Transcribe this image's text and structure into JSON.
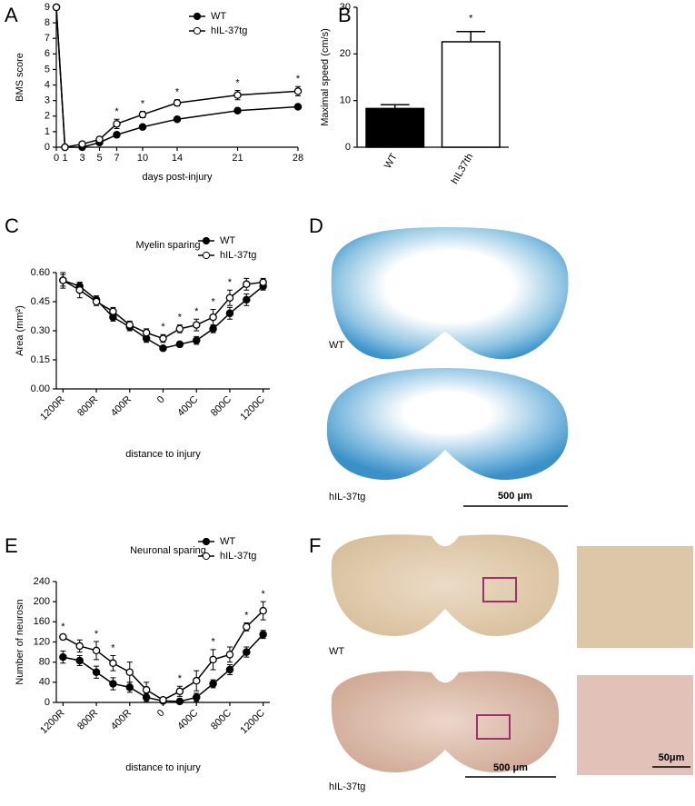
{
  "chart_data": [
    {
      "type": "line",
      "panel": "A",
      "xlabel": "days post-injury",
      "ylabel": "BMS score",
      "legend": "upper right",
      "x": [
        0,
        1,
        3,
        5,
        7,
        10,
        14,
        21,
        28
      ],
      "xlim": [
        0,
        28
      ],
      "xticks": [
        0,
        1,
        3,
        5,
        7,
        10,
        14,
        21,
        28
      ],
      "ylim": [
        0,
        9
      ],
      "yticks": [
        0,
        1,
        2,
        3,
        4,
        5,
        6,
        7,
        8,
        9
      ],
      "series": [
        {
          "name": "WT",
          "color": "#000000",
          "marker_fill": "#000000",
          "values": [
            9,
            0,
            0,
            0.3,
            0.8,
            1.3,
            1.8,
            2.35,
            2.6
          ],
          "errors": [
            0,
            0,
            0.05,
            0.08,
            0.1,
            0.1,
            0.1,
            0.1,
            0.1
          ]
        },
        {
          "name": "hIL-37tg",
          "color": "#000000",
          "marker_fill": "#ffffff",
          "values": [
            9,
            0,
            0.2,
            0.5,
            1.5,
            2.1,
            2.85,
            3.35,
            3.6
          ],
          "errors": [
            0,
            0,
            0.1,
            0.15,
            0.3,
            0.2,
            0.2,
            0.3,
            0.3
          ]
        }
      ],
      "significance": [
        null,
        null,
        null,
        null,
        "*",
        "*",
        "*",
        "*",
        "*"
      ]
    },
    {
      "type": "bar",
      "panel": "B",
      "ylabel": "Maximal speed (cm/s)",
      "categories": [
        "WT",
        "hIL37th"
      ],
      "values": [
        8.3,
        22.6
      ],
      "errors": [
        0.8,
        2.2
      ],
      "colors": [
        "#000000",
        "#ffffff"
      ],
      "ylim": [
        0,
        30
      ],
      "yticks": [
        0,
        10,
        20,
        30
      ],
      "significance": [
        null,
        "*"
      ]
    },
    {
      "type": "line",
      "panel": "C",
      "title": "Myelin sparing",
      "xlabel": "distance to injury",
      "ylabel": "Area (mm²)",
      "legend": "upper right",
      "x": [
        -1200,
        -1000,
        -800,
        -600,
        -400,
        -200,
        0,
        200,
        400,
        600,
        800,
        1000,
        1200
      ],
      "xlim": [
        -1280,
        1280
      ],
      "xticks": [
        {
          "value": -1200,
          "label": "1200R"
        },
        {
          "value": -800,
          "label": "800R"
        },
        {
          "value": -400,
          "label": "400R"
        },
        0,
        {
          "value": 400,
          "label": "400C"
        },
        {
          "value": 800,
          "label": "800C"
        },
        {
          "value": 1200,
          "label": "1200C"
        }
      ],
      "ylim": [
        0,
        0.6
      ],
      "yticks": [
        {
          "value": 0,
          "label": "0.00"
        },
        {
          "value": 0.15,
          "label": "0.15"
        },
        {
          "value": 0.3,
          "label": "0.30"
        },
        {
          "value": 0.45,
          "label": "0.45"
        },
        {
          "value": 0.6,
          "label": "0.60"
        }
      ],
      "series": [
        {
          "name": "WT",
          "color": "#000000",
          "marker_fill": "#000000",
          "values": [
            0.56,
            0.53,
            0.46,
            0.37,
            0.32,
            0.26,
            0.21,
            0.23,
            0.25,
            0.31,
            0.39,
            0.46,
            0.53
          ],
          "errors": [
            0.03,
            0.02,
            0.02,
            0.02,
            0.02,
            0.02,
            0.01,
            0.01,
            0.02,
            0.02,
            0.03,
            0.03,
            0.02
          ]
        },
        {
          "name": "hIL-37tg",
          "color": "#000000",
          "marker_fill": "#ffffff",
          "values": [
            0.56,
            0.51,
            0.45,
            0.4,
            0.33,
            0.29,
            0.26,
            0.31,
            0.33,
            0.37,
            0.47,
            0.54,
            0.55
          ],
          "errors": [
            0.04,
            0.04,
            0.02,
            0.02,
            0.02,
            0.02,
            0.02,
            0.02,
            0.03,
            0.04,
            0.04,
            0.03,
            0.02
          ]
        }
      ],
      "significance": [
        null,
        null,
        null,
        null,
        null,
        null,
        "*",
        "*",
        "*",
        "*",
        "*",
        null,
        null
      ]
    },
    {
      "type": "line",
      "panel": "E",
      "title": "Neuronal sparing",
      "xlabel": "distance to injury",
      "ylabel": "Number of neurosn",
      "legend": "upper right",
      "x": [
        -1200,
        -1000,
        -800,
        -600,
        -400,
        -200,
        0,
        200,
        400,
        600,
        800,
        1000,
        1200
      ],
      "xlim": [
        -1280,
        1280
      ],
      "xticks": [
        {
          "value": -1200,
          "label": "1200R"
        },
        {
          "value": -800,
          "label": "800R"
        },
        {
          "value": -400,
          "label": "400R"
        },
        0,
        {
          "value": 400,
          "label": "400C"
        },
        {
          "value": 800,
          "label": "800C"
        },
        {
          "value": 1200,
          "label": "1200C"
        }
      ],
      "ylim": [
        0,
        240
      ],
      "yticks": [
        0,
        40,
        80,
        120,
        160,
        200,
        240
      ],
      "series": [
        {
          "name": "WT",
          "color": "#000000",
          "marker_fill": "#000000",
          "values": [
            90,
            83,
            60,
            37,
            30,
            10,
            3,
            2,
            10,
            37,
            65,
            100,
            135
          ],
          "errors": [
            12,
            10,
            12,
            12,
            10,
            8,
            2,
            3,
            8,
            8,
            10,
            10,
            8
          ]
        },
        {
          "name": "hIL-37tg",
          "color": "#000000",
          "marker_fill": "#ffffff",
          "values": [
            130,
            112,
            103,
            78,
            60,
            25,
            5,
            22,
            43,
            85,
            95,
            150,
            182
          ],
          "errors": [
            5,
            12,
            18,
            15,
            20,
            15,
            3,
            10,
            20,
            20,
            15,
            8,
            18
          ]
        }
      ],
      "significance": [
        "*",
        null,
        "*",
        "*",
        null,
        null,
        null,
        "*",
        null,
        "*",
        null,
        "*",
        "*"
      ]
    }
  ],
  "images": [
    {
      "panel": "D",
      "labels": [
        "WT",
        "hIL-37tg"
      ],
      "scale_bar": "500 μm"
    },
    {
      "panel": "F",
      "labels": [
        "WT",
        "hIL-37tg"
      ],
      "scale_bar": "500 μm",
      "inset_scale_bar": "50μm"
    }
  ]
}
